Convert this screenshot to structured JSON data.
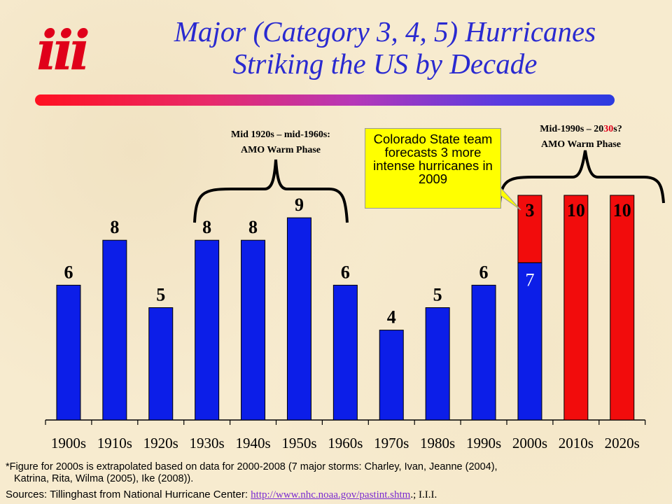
{
  "logo": "iii",
  "title_line1": "Major (Category 3, 4, 5) Hurricanes",
  "title_line2": "Striking the US by Decade",
  "annotations": {
    "warm1_line1": "Mid 1920s – mid-1960s:",
    "warm1_line2": "AMO Warm Phase",
    "warm2_prefix": "Mid-1990s – 20",
    "warm2_highlight": "30",
    "warm2_suffix": "s?",
    "warm2_line2": "AMO Warm Phase",
    "callout": "Colorado State team forecasts 3 more intense hurricanes in 2009"
  },
  "colors": {
    "blue": "#0c1ee8",
    "red": "#f20c0c",
    "title": "#2a2ad0",
    "callout_bg": "#ffff00",
    "highlight": "#e0001a"
  },
  "chart_data": {
    "type": "bar",
    "title": "Major (Category 3, 4, 5) Hurricanes Striking the US by Decade",
    "categories": [
      "1900s",
      "1910s",
      "1920s",
      "1930s",
      "1940s",
      "1950s",
      "1960s",
      "1970s",
      "1980s",
      "1990s",
      "2000s",
      "2010s",
      "2020s"
    ],
    "series": [
      {
        "color": "#0c1ee8",
        "values": [
          6,
          8,
          5,
          8,
          8,
          9,
          6,
          4,
          5,
          6,
          7,
          null,
          null
        ]
      },
      {
        "color": "#f20c0c",
        "values": [
          null,
          null,
          null,
          null,
          null,
          null,
          null,
          null,
          null,
          null,
          3,
          10,
          10
        ]
      }
    ],
    "labels": [
      "6",
      "8",
      "5",
      "8",
      "8",
      "9",
      "6",
      "4",
      "5",
      "6",
      "3",
      "10",
      "10"
    ],
    "inner_label_2000s": "7",
    "ylim": [
      0,
      10.3
    ],
    "grid": false,
    "legend": "none"
  },
  "footnote_line1": "*Figure for 2000s is extrapolated based on data for 2000-2008 (7 major storms: Charley, Ivan, Jeanne (2004),",
  "footnote_line2": "Katrina, Rita, Wilma  (2005), Ike (2008)).",
  "source_prefix": "Sources: Tillinghast from National Hurricane Center: ",
  "source_link": "http://www.nhc.noaa.gov/pastint.shtm",
  "source_suffix": ".; I.I.I."
}
